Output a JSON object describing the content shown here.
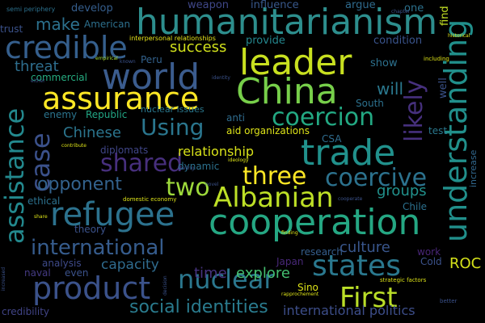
{
  "words": [
    {
      "id": "humanitarianism",
      "text": "humanitarianism",
      "color": "#2d8e8d"
    },
    {
      "id": "leader",
      "text": "leader",
      "color": "#c8e020"
    },
    {
      "id": "china",
      "text": "China",
      "color": "#77cf4a"
    },
    {
      "id": "world",
      "text": "world",
      "color": "#3b5c8e"
    },
    {
      "id": "assurance",
      "text": "assurance",
      "color": "#fde725"
    },
    {
      "id": "credible",
      "text": "credible",
      "color": "#355f8d"
    },
    {
      "id": "cooperation",
      "text": "cooperation",
      "color": "#25a783"
    },
    {
      "id": "trade",
      "text": "trade",
      "color": "#21918c"
    },
    {
      "id": "understanding",
      "text": "understanding",
      "color": "#218f8b"
    },
    {
      "id": "assistance",
      "text": "assistance",
      "color": "#23898e"
    },
    {
      "id": "case",
      "text": "case",
      "color": "#3b518b"
    },
    {
      "id": "refugee",
      "text": "refugee",
      "color": "#2c728e"
    },
    {
      "id": "albanian",
      "text": "Albanian",
      "color": "#bddf26"
    },
    {
      "id": "product",
      "text": "product",
      "color": "#3b528b"
    },
    {
      "id": "nuclear",
      "text": "nuclear",
      "color": "#2b778e"
    },
    {
      "id": "states",
      "text": "states",
      "color": "#2a788e"
    },
    {
      "id": "international",
      "text": "international",
      "color": "#365c8d"
    },
    {
      "id": "first",
      "text": "First",
      "color": "#bade28"
    },
    {
      "id": "coercion",
      "text": "coercion",
      "color": "#23a983"
    },
    {
      "id": "coercive",
      "text": "coercive",
      "color": "#2c728e"
    },
    {
      "id": "three",
      "text": "three",
      "color": "#fde725"
    },
    {
      "id": "shared",
      "text": "shared",
      "color": "#472f7d"
    },
    {
      "id": "two",
      "text": "two",
      "color": "#9dd93b"
    },
    {
      "id": "likely",
      "text": "likely",
      "color": "#46307d"
    },
    {
      "id": "using",
      "text": "Using",
      "color": "#2a768e"
    },
    {
      "id": "social-identities",
      "text": "social identities",
      "color": "#2a7b8e"
    },
    {
      "id": "opponent",
      "text": "opponent",
      "color": "#33628d"
    },
    {
      "id": "make",
      "text": "make",
      "color": "#2c718e"
    },
    {
      "id": "success",
      "text": "success",
      "color": "#d2e21b"
    },
    {
      "id": "threat",
      "text": "threat",
      "color": "#2e6e8e"
    },
    {
      "id": "chinese",
      "text": "Chinese",
      "color": "#2b758e"
    },
    {
      "id": "will",
      "text": "will",
      "color": "#2a788e"
    },
    {
      "id": "relationship",
      "text": "relationship",
      "color": "#d8e219"
    },
    {
      "id": "groups",
      "text": "groups",
      "color": "#21918c"
    },
    {
      "id": "culture",
      "text": "culture",
      "color": "#39568c"
    },
    {
      "id": "explore",
      "text": "explore",
      "color": "#44bf70"
    },
    {
      "id": "time",
      "text": "time",
      "color": "#46337e"
    },
    {
      "id": "capacity",
      "text": "capacity",
      "color": "#2f6b8e"
    },
    {
      "id": "international-politics",
      "text": "international politics",
      "color": "#3d4e8a"
    },
    {
      "id": "roc",
      "text": "ROC",
      "color": "#d5e21a"
    },
    {
      "id": "provide",
      "text": "provide",
      "color": "#24878e"
    },
    {
      "id": "condition",
      "text": "condition",
      "color": "#3a548c"
    },
    {
      "id": "show",
      "text": "show",
      "color": "#2d718e"
    },
    {
      "id": "develop",
      "text": "develop",
      "color": "#355e8d"
    },
    {
      "id": "weapon",
      "text": "weapon",
      "color": "#3f4788"
    },
    {
      "id": "influence",
      "text": "influence",
      "color": "#38588c"
    },
    {
      "id": "argue",
      "text": "argue",
      "color": "#2f6b8e"
    },
    {
      "id": "one",
      "text": "one",
      "color": "#2c728e"
    },
    {
      "id": "find",
      "text": "find",
      "color": "#c2df23"
    },
    {
      "id": "american",
      "text": "American",
      "color": "#2d708e"
    },
    {
      "id": "trust",
      "text": "trust",
      "color": "#3b528b"
    },
    {
      "id": "commercial",
      "text": "commercial",
      "color": "#26ad81"
    },
    {
      "id": "enemy",
      "text": "enemy",
      "color": "#2b748e"
    },
    {
      "id": "republic",
      "text": "Republic",
      "color": "#22a785"
    },
    {
      "id": "diplomats",
      "text": "diplomats",
      "color": "#404688"
    },
    {
      "id": "aid-organizations",
      "text": "aid organizations",
      "color": "#dde318"
    },
    {
      "id": "anti",
      "text": "anti",
      "color": "#2f6c8e"
    },
    {
      "id": "csa",
      "text": "CSA",
      "color": "#2f6c8e"
    },
    {
      "id": "peru",
      "text": "Peru",
      "color": "#33628d"
    },
    {
      "id": "dynamic",
      "text": "dynamic",
      "color": "#2c718e"
    },
    {
      "id": "research",
      "text": "research",
      "color": "#355e8d"
    },
    {
      "id": "work",
      "text": "work",
      "color": "#482677"
    },
    {
      "id": "cold",
      "text": "Cold",
      "color": "#3b528b"
    },
    {
      "id": "analysis",
      "text": "analysis",
      "color": "#3e4a89"
    },
    {
      "id": "even",
      "text": "even",
      "color": "#3b528b"
    },
    {
      "id": "naval",
      "text": "naval",
      "color": "#443a83"
    },
    {
      "id": "theory",
      "text": "theory",
      "color": "#3b528b"
    },
    {
      "id": "ethical",
      "text": "ethical",
      "color": "#2c718e"
    },
    {
      "id": "sino",
      "text": "Sino",
      "color": "#dde318"
    },
    {
      "id": "japan",
      "text": "Japan",
      "color": "#482878"
    },
    {
      "id": "well",
      "text": "well",
      "color": "#3b528b"
    },
    {
      "id": "south",
      "text": "South",
      "color": "#2c718e"
    },
    {
      "id": "test",
      "text": "test",
      "color": "#2a788e"
    },
    {
      "id": "chile",
      "text": "Chile",
      "color": "#2c718e"
    },
    {
      "id": "credibility",
      "text": "credibility",
      "color": "#414487"
    },
    {
      "id": "increase",
      "text": "increase",
      "color": "#31688e"
    },
    {
      "id": "nuclear-issues",
      "text": "nuclear issues",
      "color": "#2a788e"
    },
    {
      "id": "interpersonal-relationships",
      "text": "interpersonal relationships",
      "color": "#e5e419"
    },
    {
      "id": "semi-periphery",
      "text": "semi periphery",
      "color": "#2c718e"
    },
    {
      "id": "empirical",
      "text": "empirical",
      "color": "#a5db36"
    },
    {
      "id": "known",
      "text": "known",
      "color": "#3b528b"
    },
    {
      "id": "either",
      "text": "either",
      "color": "#3b528b"
    },
    {
      "id": "identity",
      "text": "identity",
      "color": "#3b528b"
    },
    {
      "id": "including",
      "text": "including",
      "color": "#dde318"
    },
    {
      "id": "chapter",
      "text": "chapter",
      "color": "#3b528b"
    },
    {
      "id": "historical",
      "text": "historical",
      "color": "#dde318"
    },
    {
      "id": "contribute",
      "text": "contribute",
      "color": "#dde318"
    },
    {
      "id": "ideology",
      "text": "ideology",
      "color": "#dde318"
    },
    {
      "id": "feeling",
      "text": "feeling",
      "color": "#3b528b"
    },
    {
      "id": "novel",
      "text": "novel",
      "color": "#3b528b"
    },
    {
      "id": "domestic-economy",
      "text": "domestic economy",
      "color": "#dde318"
    },
    {
      "id": "cooperate",
      "text": "cooperate",
      "color": "#3b528b"
    },
    {
      "id": "finding",
      "text": "finding",
      "color": "#dde318"
    },
    {
      "id": "share",
      "text": "share",
      "color": "#dde318"
    },
    {
      "id": "strategic-factors",
      "text": "strategic factors",
      "color": "#dde318"
    },
    {
      "id": "rapprochement",
      "text": "rapprochement",
      "color": "#dde318"
    },
    {
      "id": "better",
      "text": "better",
      "color": "#3b528b"
    },
    {
      "id": "increased",
      "text": "increased",
      "color": "#3b528b"
    },
    {
      "id": "decision",
      "text": "decision",
      "color": "#3b528b"
    }
  ]
}
